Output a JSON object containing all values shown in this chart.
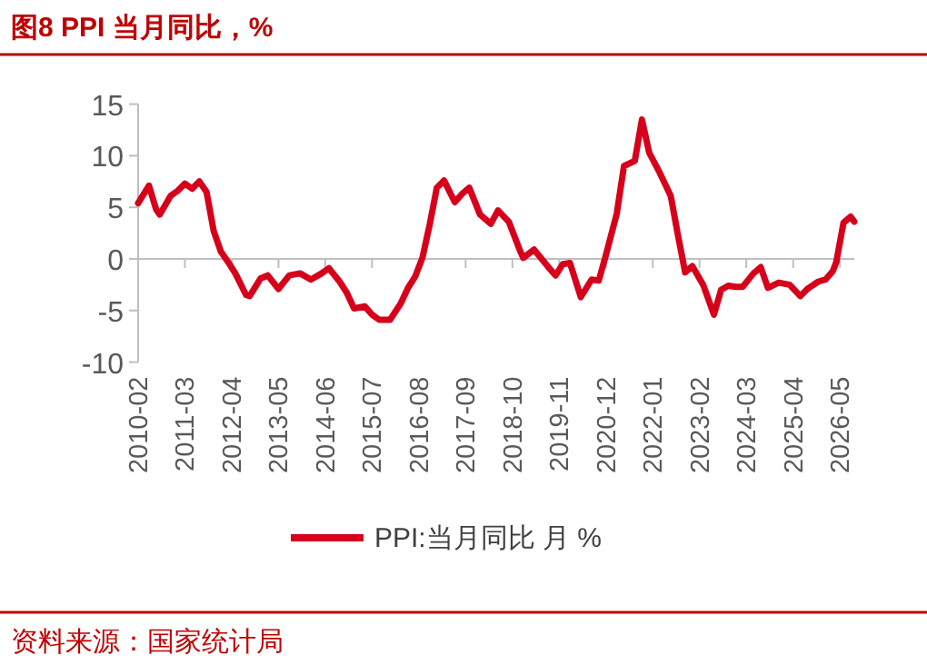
{
  "chart_data": {
    "type": "line",
    "title": "图8  PPI 当月同比，%",
    "x": [
      "2010-02",
      "2010-05",
      "2010-07",
      "2010-08",
      "2010-11",
      "2011-01",
      "2011-03",
      "2011-05",
      "2011-07",
      "2011-09",
      "2011-11",
      "2012-01",
      "2012-03",
      "2012-05",
      "2012-08",
      "2012-09",
      "2012-12",
      "2013-02",
      "2013-05",
      "2013-08",
      "2013-11",
      "2014-02",
      "2014-05",
      "2014-07",
      "2014-10",
      "2014-12",
      "2015-02",
      "2015-05",
      "2015-07",
      "2015-09",
      "2015-12",
      "2016-03",
      "2016-05",
      "2016-07",
      "2016-09",
      "2016-11",
      "2017-01",
      "2017-03",
      "2017-06",
      "2017-08",
      "2017-10",
      "2018-01",
      "2018-04",
      "2018-06",
      "2018-09",
      "2018-12",
      "2019-01",
      "2019-04",
      "2019-08",
      "2019-10",
      "2019-12",
      "2020-02",
      "2020-05",
      "2020-08",
      "2020-10",
      "2020-12",
      "2021-03",
      "2021-05",
      "2021-08",
      "2021-10",
      "2021-12",
      "2022-03",
      "2022-06",
      "2022-08",
      "2022-10",
      "2022-12",
      "2023-03",
      "2023-06",
      "2023-08",
      "2023-10",
      "2023-12",
      "2024-02",
      "2024-05",
      "2024-07",
      "2024-09",
      "2024-12",
      "2025-03",
      "2025-06",
      "2025-08",
      "2025-11",
      "2026-01",
      "2026-03",
      "2026-04",
      "2026-06",
      "2026-08",
      "2026-09"
    ],
    "series": [
      {
        "name": "PPI:当月同比 月 %",
        "color": "#d7001b",
        "values": [
          5.4,
          7.1,
          4.8,
          4.3,
          6.1,
          6.6,
          7.3,
          6.8,
          7.5,
          6.5,
          2.7,
          0.7,
          -0.3,
          -1.4,
          -3.5,
          -3.6,
          -1.9,
          -1.6,
          -2.9,
          -1.6,
          -1.4,
          -2.0,
          -1.4,
          -0.9,
          -2.2,
          -3.3,
          -4.8,
          -4.6,
          -5.4,
          -5.9,
          -5.9,
          -4.3,
          -2.8,
          -1.7,
          0.1,
          3.3,
          6.9,
          7.6,
          5.5,
          6.3,
          6.9,
          4.3,
          3.4,
          4.7,
          3.6,
          0.9,
          0.1,
          0.9,
          -0.8,
          -1.6,
          -0.5,
          -0.4,
          -3.7,
          -2.0,
          -2.1,
          0.4,
          4.4,
          9.0,
          9.5,
          13.5,
          10.3,
          8.3,
          6.1,
          2.3,
          -1.3,
          -0.7,
          -2.5,
          -5.4,
          -3.0,
          -2.6,
          -2.7,
          -2.7,
          -1.4,
          -0.8,
          -2.8,
          -2.3,
          -2.5,
          -3.6,
          -2.9,
          -2.2,
          -2.0,
          -1.2,
          -0.3,
          3.5,
          4.1,
          3.6
        ]
      }
    ],
    "xlim": [
      "2010-02",
      "2026-09"
    ],
    "xticks": [
      "2010-02",
      "2011-03",
      "2012-04",
      "2013-05",
      "2014-06",
      "2015-07",
      "2016-08",
      "2017-09",
      "2018-10",
      "2019-11",
      "2020-12",
      "2022-01",
      "2023-02",
      "2024-03",
      "2025-04",
      "2026-05"
    ],
    "ylim": [
      -10,
      15
    ],
    "yticks": [
      -10,
      -5,
      0,
      5,
      10,
      15
    ],
    "legend": "bottom",
    "line_style": "solid",
    "marker": "none",
    "annotations": [
      "资料来源：国家统计局"
    ]
  }
}
